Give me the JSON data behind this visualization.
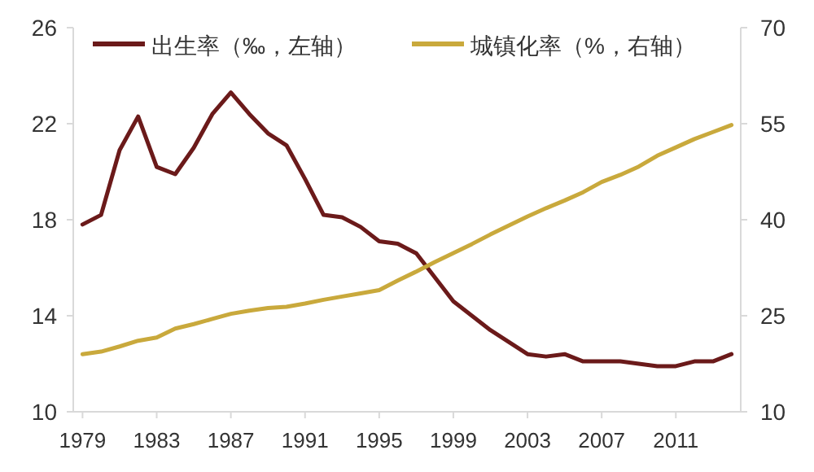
{
  "chart_data": {
    "type": "line",
    "legend": "top",
    "x": [
      1979,
      1980,
      1981,
      1982,
      1983,
      1984,
      1985,
      1986,
      1987,
      1988,
      1989,
      1990,
      1991,
      1992,
      1993,
      1994,
      1995,
      1996,
      1997,
      1998,
      1999,
      2000,
      2001,
      2002,
      2003,
      2004,
      2005,
      2006,
      2007,
      2008,
      2009,
      2010,
      2011,
      2012,
      2013,
      2014
    ],
    "series": [
      {
        "name": "出生率（‰，左轴）",
        "color": "#6b1a1a",
        "values": [
          17.8,
          18.2,
          20.9,
          22.3,
          20.2,
          19.9,
          21.0,
          22.4,
          23.3,
          22.4,
          21.6,
          21.1,
          19.7,
          18.2,
          18.1,
          17.7,
          17.1,
          17.0,
          16.6,
          15.6,
          14.6,
          14.0,
          13.4,
          12.9,
          12.4,
          12.3,
          12.4,
          12.1,
          12.1,
          12.1,
          12.0,
          11.9,
          11.9,
          12.1,
          12.1,
          12.4
        ]
      },
      {
        "name": "城镇化率（%，右轴）",
        "color": "#c9a93c",
        "axis": "y2",
        "values": [
          19.0,
          19.4,
          20.2,
          21.1,
          21.6,
          23.0,
          23.7,
          24.5,
          25.3,
          25.8,
          26.2,
          26.4,
          26.9,
          27.5,
          28.0,
          28.5,
          29.0,
          30.5,
          31.9,
          33.4,
          34.8,
          36.2,
          37.7,
          39.1,
          40.5,
          41.8,
          43.0,
          44.3,
          45.9,
          47.0,
          48.3,
          50.0,
          51.3,
          52.6,
          53.7,
          54.8
        ]
      }
    ],
    "xlim": [
      1978.5,
      2014.5
    ],
    "xticks": [
      1979,
      1983,
      1987,
      1991,
      1995,
      1999,
      2003,
      2007,
      2011
    ],
    "ylim": [
      10,
      26
    ],
    "yticks": [
      10,
      14,
      18,
      22,
      26
    ],
    "y2lim": [
      10,
      70
    ],
    "y2ticks": [
      10,
      25,
      40,
      55,
      70
    ]
  }
}
